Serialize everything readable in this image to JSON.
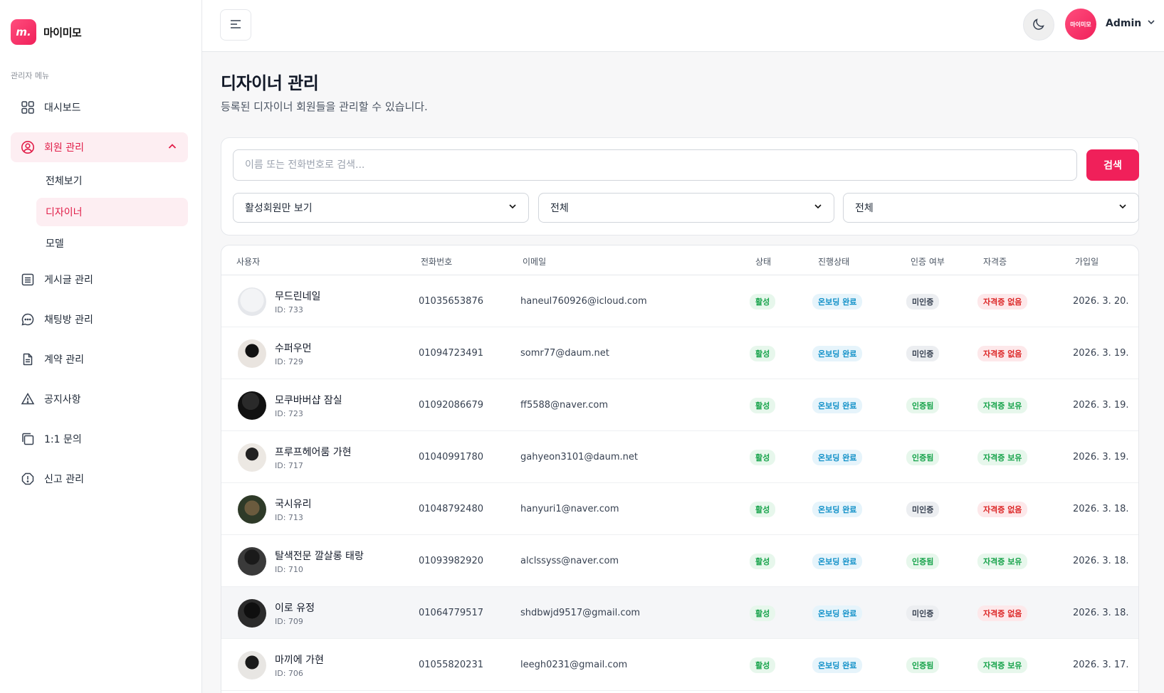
{
  "brand": {
    "logo_text": "m.",
    "name": "마이미모"
  },
  "sidebar": {
    "caption": "관리자 메뉴",
    "items": [
      {
        "label": "대시보드",
        "icon": "grid-icon"
      },
      {
        "label": "회원 관리",
        "icon": "user-circle-icon"
      },
      {
        "label": "게시글 관리",
        "icon": "list-icon"
      },
      {
        "label": "채팅방 관리",
        "icon": "chat-icon"
      },
      {
        "label": "계약 관리",
        "icon": "document-icon"
      },
      {
        "label": "공지사항",
        "icon": "warning-icon"
      },
      {
        "label": "1:1 문의",
        "icon": "copy-icon"
      },
      {
        "label": "신고 관리",
        "icon": "alert-circle-icon"
      }
    ],
    "submenu": [
      {
        "label": "전체보기"
      },
      {
        "label": "디자이너"
      },
      {
        "label": "모델"
      }
    ]
  },
  "header": {
    "admin_avatar_text": "마이미모",
    "admin_name": "Admin"
  },
  "page": {
    "title": "디자이너 관리",
    "description": "등록된 디자이너 회원들을 관리할 수 있습니다."
  },
  "filters": {
    "search_placeholder": "이름 또는 전화번호로 검색...",
    "search_value": "",
    "search_button": "검색",
    "select_1": "활성회원만 보기",
    "select_2": "전체",
    "select_3": "전체"
  },
  "table": {
    "headers": [
      "사용자",
      "전화번호",
      "이메일",
      "상태",
      "진행상태",
      "인증 여부",
      "자격증",
      "가입일"
    ],
    "rows": [
      {
        "name": "무드린네일",
        "id": "ID: 733",
        "phone": "01035653876",
        "email": "haneul760926@icloud.com",
        "status": "활성",
        "progress": "온보딩 완료",
        "verified": "미인증",
        "license": "자격증 없음",
        "joined": "2026. 3. 20."
      },
      {
        "name": "수퍼우먼",
        "id": "ID: 729",
        "phone": "01094723491",
        "email": "somr77@daum.net",
        "status": "활성",
        "progress": "온보딩 완료",
        "verified": "미인증",
        "license": "자격증 없음",
        "joined": "2026. 3. 19."
      },
      {
        "name": "모쿠바버샵 잠실",
        "id": "ID: 723",
        "phone": "01092086679",
        "email": "ff5588@naver.com",
        "status": "활성",
        "progress": "온보딩 완료",
        "verified": "인증됨",
        "license": "자격증 보유",
        "joined": "2026. 3. 19."
      },
      {
        "name": "프루프헤어룸 가현",
        "id": "ID: 717",
        "phone": "01040991780",
        "email": "gahyeon3101@daum.net",
        "status": "활성",
        "progress": "온보딩 완료",
        "verified": "인증됨",
        "license": "자격증 보유",
        "joined": "2026. 3. 19."
      },
      {
        "name": "국시유리",
        "id": "ID: 713",
        "phone": "01048792480",
        "email": "hanyuri1@naver.com",
        "status": "활성",
        "progress": "온보딩 완료",
        "verified": "미인증",
        "license": "자격증 없음",
        "joined": "2026. 3. 18."
      },
      {
        "name": "탈색전문 깔살롱 태랑",
        "id": "ID: 710",
        "phone": "01093982920",
        "email": "alclssyss@naver.com",
        "status": "활성",
        "progress": "온보딩 완료",
        "verified": "인증됨",
        "license": "자격증 보유",
        "joined": "2026. 3. 18."
      },
      {
        "name": "이로 유정",
        "id": "ID: 709",
        "phone": "01064779517",
        "email": "shdbwjd9517@gmail.com",
        "status": "활성",
        "progress": "온보딩 완료",
        "verified": "미인증",
        "license": "자격증 없음",
        "joined": "2026. 3. 18."
      },
      {
        "name": "마끼에 가현",
        "id": "ID: 706",
        "phone": "01055820231",
        "email": "leegh0231@gmail.com",
        "status": "활성",
        "progress": "온보딩 완료",
        "verified": "인증됨",
        "license": "자격증 보유",
        "joined": "2026. 3. 17."
      }
    ]
  },
  "colors": {
    "accent": "#f0205a",
    "active_bg": "#fdeef2",
    "active_text": "#e11d48"
  }
}
